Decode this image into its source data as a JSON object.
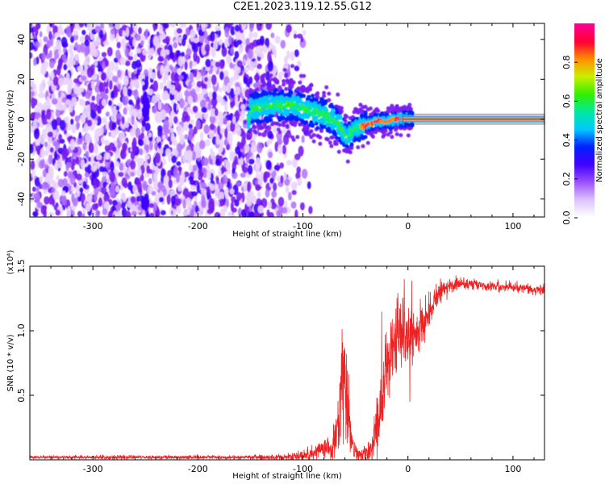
{
  "title": "C2E1.2023.119.12.55.G12",
  "chart_data": [
    {
      "type": "heatmap",
      "title": "",
      "xlabel": "Height of straight line (km)",
      "ylabel": "Frequency (Hz)",
      "xlim": [
        -360,
        130
      ],
      "ylim": [
        -49,
        48
      ],
      "xticks": [
        -300,
        -200,
        -100,
        0,
        100
      ],
      "xtick_labels": [
        "-300",
        "-200",
        "-100",
        "0",
        "100"
      ],
      "yticks": [
        -40,
        -20,
        0,
        20,
        40
      ],
      "ytick_labels": [
        "-40",
        "-20",
        "0",
        "20",
        "40"
      ],
      "colorbar": {
        "label": "Normalized spectral amplitude",
        "range": [
          0,
          1
        ],
        "ticks": [
          0.0,
          0.2,
          0.4,
          0.6,
          0.8
        ],
        "tick_labels": [
          "0.0",
          "0.2",
          "0.4",
          "0.6",
          "0.8"
        ]
      },
      "colors": [
        "#ffffff",
        "#ead3ff",
        "#b070ff",
        "#7a1cf0",
        "#3f00ff",
        "#0020ff",
        "#00c8ff",
        "#00e8a0",
        "#30f000",
        "#c8f000",
        "#ff9000",
        "#ff0030",
        "#ff0090"
      ],
      "features": {
        "noise_region_x": [
          -360,
          -150
        ],
        "carrier_ridge": {
          "x": [
            -150,
            -130,
            -110,
            -90,
            -75,
            -65,
            -58,
            -50,
            -40,
            -30,
            -20,
            -10,
            0,
            130
          ],
          "y": [
            5,
            7,
            7,
            4,
            1,
            -3,
            -9,
            -5,
            -3,
            -1,
            -1,
            0,
            0,
            0
          ]
        }
      }
    },
    {
      "type": "line",
      "title": "",
      "xlabel": "Height of straight line (km)",
      "ylabel": "SNR (10 * v/v)",
      "y_multiplier": "(x10⁴)",
      "xlim": [
        -360,
        130
      ],
      "ylim": [
        0,
        1.5
      ],
      "xticks": [
        -300,
        -200,
        -100,
        0,
        100
      ],
      "xtick_labels": [
        "-300",
        "-200",
        "-100",
        "0",
        "100"
      ],
      "yticks": [
        0.5,
        1.0,
        1.5
      ],
      "ytick_labels": [
        "0.5",
        "1.0",
        "1.5"
      ],
      "color": "#ee2222",
      "series": [
        {
          "x": [
            -360,
            -300,
            -250,
            -200,
            -150,
            -120,
            -100,
            -90,
            -75,
            -70,
            -65,
            -62,
            -60,
            -58,
            -55,
            -50,
            -45,
            -40,
            -35,
            -30,
            -25,
            -20,
            -15,
            -10,
            -5,
            -2,
            0,
            5,
            10,
            20,
            30,
            40,
            50,
            60,
            70,
            80,
            90,
            100,
            110,
            120,
            130
          ],
          "y": [
            0.02,
            0.02,
            0.02,
            0.02,
            0.02,
            0.02,
            0.03,
            0.05,
            0.08,
            0.12,
            0.3,
            0.75,
            0.65,
            0.45,
            0.2,
            0.05,
            0.04,
            0.05,
            0.06,
            0.25,
            0.45,
            0.65,
            0.85,
            1.0,
            1.05,
            0.9,
            0.85,
            0.95,
            1.0,
            1.15,
            1.3,
            1.35,
            1.36,
            1.36,
            1.35,
            1.35,
            1.34,
            1.34,
            1.33,
            1.32,
            1.31
          ],
          "noise": [
            0.005,
            0.008,
            0.008,
            0.008,
            0.008,
            0.012,
            0.02,
            0.03,
            0.05,
            0.08,
            0.15,
            0.2,
            0.2,
            0.15,
            0.1,
            0.03,
            0.03,
            0.04,
            0.06,
            0.15,
            0.15,
            0.15,
            0.15,
            0.15,
            0.15,
            0.15,
            0.15,
            0.12,
            0.1,
            0.06,
            0.04,
            0.03,
            0.02,
            0.02,
            0.02,
            0.02,
            0.02,
            0.02,
            0.02,
            0.02,
            0.02
          ]
        }
      ]
    }
  ]
}
